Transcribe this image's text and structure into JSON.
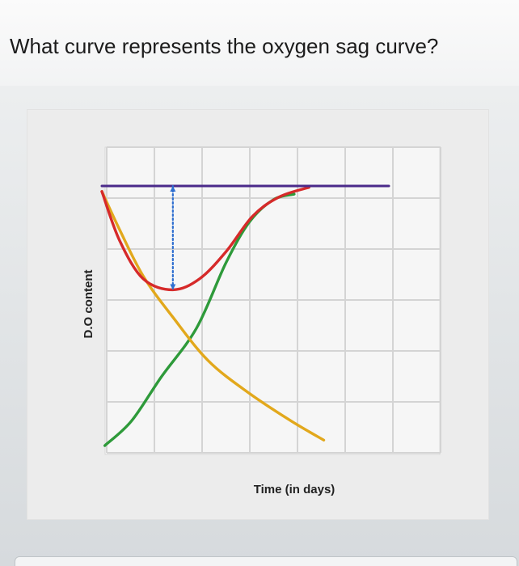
{
  "question": {
    "text": "What curve represents the oxygen sag curve?"
  },
  "chart_data": {
    "type": "line",
    "title": "",
    "xlabel": "Time (in days)",
    "ylabel": "D.O content",
    "x_ticks_labeled": false,
    "y_ticks_labeled": false,
    "grid": true,
    "legend": "none",
    "colors": {
      "purple": "#4b2a8a",
      "red": "#d62a2a",
      "green": "#2e9a3a",
      "yellow": "#e2a81c",
      "blue_marker": "#2f6fd0"
    },
    "series": [
      {
        "color": "#4b2a8a",
        "points": [
          [
            0,
            100
          ],
          [
            0.06,
            100
          ],
          [
            0.5,
            100
          ],
          [
            0.97,
            100
          ]
        ]
      },
      {
        "color": "#d62a2a",
        "points": [
          [
            0.0,
            98
          ],
          [
            0.06,
            80
          ],
          [
            0.14,
            66
          ],
          [
            0.24,
            62
          ],
          [
            0.33,
            66
          ],
          [
            0.42,
            76
          ],
          [
            0.51,
            89
          ],
          [
            0.6,
            96
          ],
          [
            0.7,
            99.5
          ]
        ]
      },
      {
        "color": "#2e9a3a",
        "points": [
          [
            0.01,
            5
          ],
          [
            0.1,
            14
          ],
          [
            0.2,
            30
          ],
          [
            0.32,
            48
          ],
          [
            0.42,
            72
          ],
          [
            0.5,
            87
          ],
          [
            0.58,
            95
          ],
          [
            0.65,
            97
          ]
        ]
      },
      {
        "color": "#e2a81c",
        "points": [
          [
            0.0,
            98
          ],
          [
            0.06,
            84
          ],
          [
            0.14,
            67
          ],
          [
            0.24,
            52
          ],
          [
            0.36,
            36
          ],
          [
            0.5,
            24
          ],
          [
            0.64,
            14
          ],
          [
            0.75,
            7
          ]
        ]
      },
      {
        "color": "#2f6fd0",
        "style": "dotted",
        "points": [
          [
            0.24,
            100
          ],
          [
            0.24,
            62
          ]
        ]
      }
    ]
  }
}
